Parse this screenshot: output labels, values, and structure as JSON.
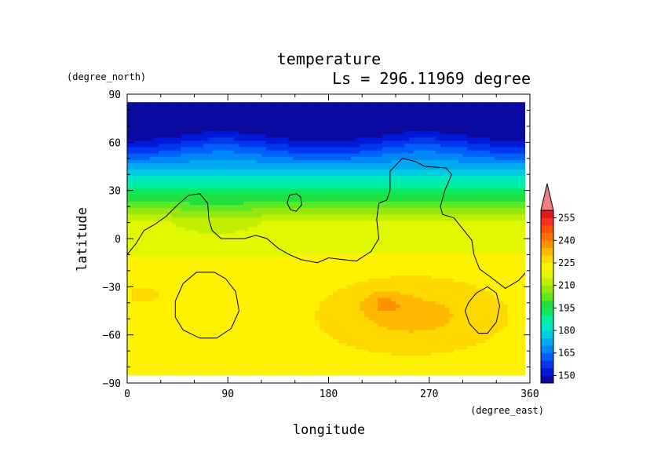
{
  "chart_data": {
    "type": "heatmap",
    "title": "temperature",
    "subtitle": "Ls = 296.11969 degree",
    "xlabel": "longitude",
    "ylabel": "latitude",
    "x_unit": "(degree_east)",
    "y_unit": "(degree_north)",
    "xlim": [
      0,
      360
    ],
    "ylim": [
      -90,
      90
    ],
    "data_lat_range": [
      -85,
      85
    ],
    "x_ticks": [
      "0",
      "90",
      "180",
      "270",
      "360"
    ],
    "y_ticks": [
      "90",
      "60",
      "30",
      "0",
      "−30",
      "−60",
      "−90"
    ],
    "colorbar": {
      "labels": [
        "150",
        "165",
        "180",
        "195",
        "210",
        "225",
        "240",
        "255"
      ],
      "levels": [
        145,
        150,
        155,
        160,
        165,
        170,
        175,
        180,
        185,
        190,
        195,
        200,
        205,
        210,
        215,
        220,
        225,
        230,
        235,
        240,
        245,
        250,
        255,
        260
      ],
      "colors": [
        "#0a0aa0",
        "#0018d8",
        "#0038f0",
        "#0060f8",
        "#0088f8",
        "#00aaf0",
        "#00cce0",
        "#00e8c0",
        "#00f0a0",
        "#10e858",
        "#20e040",
        "#60e820",
        "#98e810",
        "#c0f000",
        "#e0f800",
        "#fff200",
        "#ffd800",
        "#ffb800",
        "#ff9000",
        "#ff7000",
        "#ff5000",
        "#f83020",
        "#e81818",
        "#f08080"
      ]
    },
    "contour_level": 220
  }
}
